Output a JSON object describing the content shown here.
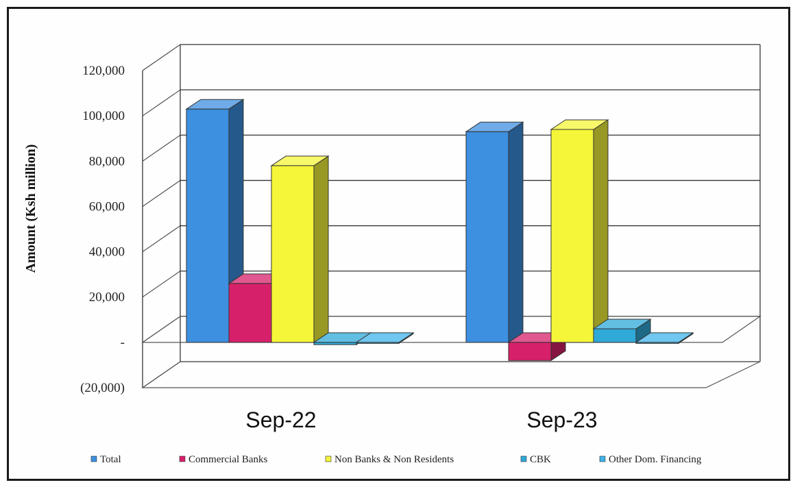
{
  "chart_data": {
    "type": "bar",
    "title": "",
    "xlabel": "",
    "ylabel": "Amount  (Ksh million)",
    "ylim": [
      -20000,
      120000
    ],
    "yticks": [
      -20000,
      0,
      20000,
      40000,
      60000,
      80000,
      100000,
      120000
    ],
    "ytick_labels": [
      "(20,000)",
      "-",
      "20,000",
      "40,000",
      "60,000",
      "80,000",
      "100,000",
      "120,000"
    ],
    "categories": [
      "Sep-22",
      "Sep-23"
    ],
    "series": [
      {
        "name": "Total",
        "color": "#3D8FE0",
        "values": [
          103000,
          93000
        ]
      },
      {
        "name": "Commercial Banks",
        "color": "#D6206A",
        "values": [
          26000,
          -8000
        ]
      },
      {
        "name": "Non Banks & Non Residents",
        "color": "#F5F53A",
        "values": [
          78000,
          94000
        ]
      },
      {
        "name": "CBK",
        "color": "#2FA9D8",
        "values": [
          -1000,
          6000
        ]
      },
      {
        "name": "Other Dom. Financing",
        "color": "#40B4EA",
        "values": [
          0,
          0
        ]
      }
    ],
    "legend_position": "bottom",
    "grid": true,
    "projection": "3d"
  }
}
